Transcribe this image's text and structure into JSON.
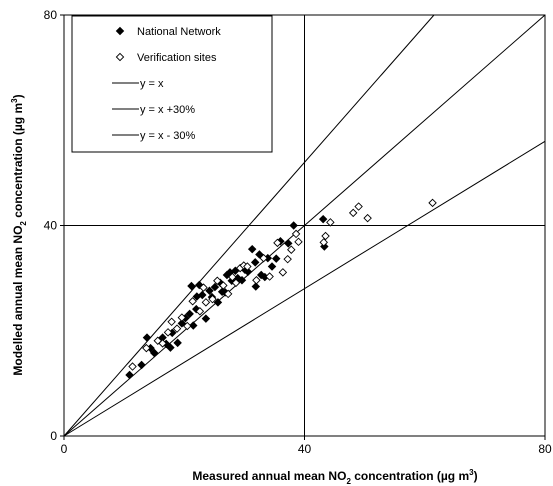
{
  "chart_data": {
    "type": "scatter",
    "xlim": [
      0,
      80
    ],
    "ylim": [
      0,
      80
    ],
    "x_ticks": [
      "0",
      "40",
      "80"
    ],
    "y_ticks": [
      "0",
      "40",
      "80"
    ],
    "grid_lines": {
      "x": [
        40
      ],
      "y": [
        40
      ]
    },
    "xlabel": {
      "main": "Measured annual mean NO",
      "sub": "2",
      "mid": " concentration (µg m",
      "sup": "3",
      "end": ")"
    },
    "ylabel": {
      "main": "Modelled annual mean NO",
      "sub": "2",
      "mid": " concentration (µg m",
      "sup": "3",
      "end": ")"
    },
    "legend_position": "top-left",
    "legend": [
      {
        "label": "National Network",
        "marker": "filled-diamond"
      },
      {
        "label": "Verification sites",
        "marker": "open-diamond"
      },
      {
        "label": "y = x",
        "marker": "line"
      },
      {
        "label": "y = x +30%",
        "marker": "line"
      },
      {
        "label": "y = x - 30%",
        "marker": "line"
      }
    ],
    "reference_lines": [
      {
        "name": "y = x",
        "slope": 1.0
      },
      {
        "name": "y = x +30%",
        "slope": 1.3
      },
      {
        "name": "y = x - 30%",
        "slope": 0.7
      }
    ],
    "series": [
      {
        "name": "National Network",
        "marker": "filled-diamond",
        "points": [
          [
            10.9,
            11.6
          ],
          [
            12.9,
            13.5
          ],
          [
            13.8,
            18.7
          ],
          [
            14.4,
            16.7
          ],
          [
            15.0,
            15.8
          ],
          [
            16.4,
            18.7
          ],
          [
            17.0,
            17.5
          ],
          [
            17.7,
            16.8
          ],
          [
            18.0,
            19.6
          ],
          [
            18.9,
            17.7
          ],
          [
            19.6,
            21.4
          ],
          [
            20.2,
            22.4
          ],
          [
            20.9,
            23.2
          ],
          [
            21.5,
            21.0
          ],
          [
            22.0,
            24.1
          ],
          [
            21.2,
            28.5
          ],
          [
            22.1,
            26.5
          ],
          [
            22.5,
            28.7
          ],
          [
            23.0,
            26.8
          ],
          [
            23.6,
            22.3
          ],
          [
            24.2,
            27.6
          ],
          [
            24.6,
            26.4
          ],
          [
            25.1,
            28.3
          ],
          [
            25.6,
            25.4
          ],
          [
            26.0,
            29.1
          ],
          [
            26.3,
            27.4
          ],
          [
            26.8,
            27.3
          ],
          [
            27.1,
            30.6
          ],
          [
            27.6,
            31.1
          ],
          [
            27.9,
            29.5
          ],
          [
            28.5,
            31.4
          ],
          [
            28.9,
            30.0
          ],
          [
            29.6,
            29.6
          ],
          [
            30.1,
            31.6
          ],
          [
            30.6,
            31.2
          ],
          [
            31.3,
            35.5
          ],
          [
            31.8,
            33.0
          ],
          [
            31.9,
            28.4
          ],
          [
            32.5,
            34.5
          ],
          [
            32.8,
            30.6
          ],
          [
            33.4,
            30.2
          ],
          [
            33.9,
            33.8
          ],
          [
            34.6,
            32.2
          ],
          [
            35.3,
            33.7
          ],
          [
            36.0,
            37.0
          ],
          [
            37.3,
            36.6
          ],
          [
            38.2,
            40.0
          ],
          [
            43.1,
            41.2
          ],
          [
            43.3,
            36.0
          ]
        ]
      },
      {
        "name": "Verification sites",
        "marker": "open-diamond",
        "points": [
          [
            11.4,
            13.2
          ],
          [
            13.7,
            16.7
          ],
          [
            15.6,
            18.1
          ],
          [
            16.4,
            17.6
          ],
          [
            17.3,
            19.7
          ],
          [
            17.9,
            21.7
          ],
          [
            18.8,
            20.4
          ],
          [
            19.6,
            22.5
          ],
          [
            20.5,
            20.9
          ],
          [
            21.4,
            25.6
          ],
          [
            22.6,
            23.7
          ],
          [
            23.2,
            28.2
          ],
          [
            23.6,
            25.4
          ],
          [
            24.7,
            26.0
          ],
          [
            25.5,
            29.5
          ],
          [
            26.5,
            28.6
          ],
          [
            27.3,
            27.0
          ],
          [
            28.0,
            30.2
          ],
          [
            28.6,
            29.1
          ],
          [
            29.3,
            31.9
          ],
          [
            29.9,
            32.4
          ],
          [
            30.5,
            32.2
          ],
          [
            32.0,
            29.6
          ],
          [
            33.2,
            33.8
          ],
          [
            34.2,
            30.3
          ],
          [
            35.5,
            36.7
          ],
          [
            36.4,
            31.1
          ],
          [
            37.2,
            33.6
          ],
          [
            37.8,
            35.4
          ],
          [
            39.0,
            36.9
          ],
          [
            38.6,
            38.4
          ],
          [
            43.5,
            38.0
          ],
          [
            43.2,
            36.8
          ],
          [
            44.3,
            40.6
          ],
          [
            48.1,
            42.4
          ],
          [
            49.0,
            43.6
          ],
          [
            50.5,
            41.4
          ],
          [
            61.3,
            44.3
          ]
        ]
      }
    ]
  }
}
